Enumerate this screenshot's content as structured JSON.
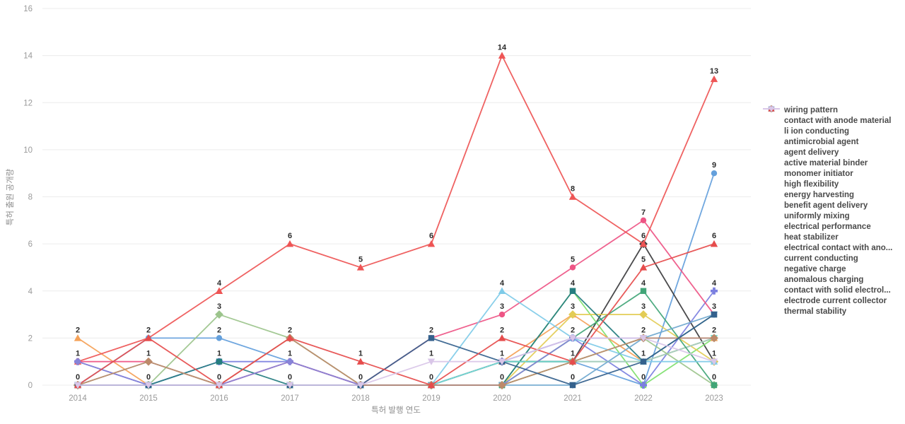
{
  "chart_data": {
    "type": "line",
    "title": "",
    "xlabel": "특허 발행 연도",
    "ylabel": "특허 출원 공개량",
    "x": [
      2014,
      2015,
      2016,
      2017,
      2018,
      2019,
      2020,
      2021,
      2022,
      2023
    ],
    "ylim": [
      0,
      16
    ],
    "ytick_step": 2,
    "grid": true,
    "legend_position": "right",
    "point_labels": "unique value per year shown above point clusters",
    "series": [
      {
        "name": "wiring pattern",
        "color": "#64A0DC",
        "shape": "circle",
        "values": [
          0,
          2,
          2,
          1,
          0,
          0,
          1,
          1,
          0,
          9
        ]
      },
      {
        "name": "contact with anode material",
        "color": "#3b3b3d",
        "shape": "diamond",
        "values": [
          0,
          0,
          0,
          0,
          0,
          0,
          1,
          1,
          6,
          1
        ]
      },
      {
        "name": "li ion conducting",
        "color": "#7EE06E",
        "shape": "square",
        "values": [
          0,
          0,
          0,
          0,
          0,
          0,
          0,
          4,
          0,
          2
        ]
      },
      {
        "name": "antimicrobial agent",
        "color": "#F5A157",
        "shape": "tri-up",
        "values": [
          2,
          0,
          0,
          0,
          0,
          0,
          1,
          3,
          1,
          2
        ]
      },
      {
        "name": "agent delivery",
        "color": "#7B7FE0",
        "shape": "cross",
        "values": [
          1,
          0,
          1,
          1,
          0,
          0,
          1,
          2,
          0,
          4
        ]
      },
      {
        "name": "active material binder",
        "color": "#EE5585",
        "shape": "circle",
        "values": [
          1,
          1,
          0,
          1,
          0,
          2,
          3,
          5,
          7,
          3
        ]
      },
      {
        "name": "monomer initiator",
        "color": "#E3CC55",
        "shape": "diamond",
        "values": [
          0,
          0,
          0,
          0,
          0,
          0,
          0,
          3,
          3,
          1
        ]
      },
      {
        "name": "high flexibility",
        "color": "#257D80",
        "shape": "square",
        "values": [
          0,
          0,
          1,
          0,
          0,
          0,
          0,
          4,
          1,
          3
        ]
      },
      {
        "name": "energy harvesting",
        "color": "#EE5555",
        "shape": "tri-up",
        "values": [
          1,
          2,
          4,
          6,
          5,
          6,
          14,
          8,
          6,
          13
        ]
      },
      {
        "name": "benefit agent delivery",
        "color": "#70E0D0",
        "shape": "tri-down",
        "values": [
          0,
          0,
          0,
          0,
          0,
          0,
          1,
          1,
          1,
          2
        ]
      },
      {
        "name": "uniformly mixing",
        "color": "#AECCBC",
        "shape": "circle",
        "values": [
          0,
          1,
          0,
          0,
          0,
          0,
          0,
          1,
          1,
          2
        ]
      },
      {
        "name": "electrical performance",
        "color": "#9CC48C",
        "shape": "diamond",
        "values": [
          0,
          0,
          3,
          2,
          0,
          0,
          0,
          1,
          2,
          0
        ]
      },
      {
        "name": "heat stabilizer",
        "color": "#41A577",
        "shape": "square",
        "values": [
          0,
          0,
          0,
          0,
          0,
          0,
          0,
          2,
          4,
          0
        ]
      },
      {
        "name": "electrical contact with ano...",
        "color": "#7FCBE8",
        "shape": "tri-up",
        "values": [
          0,
          0,
          0,
          0,
          0,
          0,
          4,
          2,
          1,
          1
        ]
      },
      {
        "name": "current conducting",
        "color": "#6FA8CF",
        "shape": "tri-down",
        "values": [
          0,
          0,
          0,
          0,
          0,
          0,
          0,
          0,
          2,
          3
        ]
      },
      {
        "name": "negative charge",
        "color": "#8784D8",
        "shape": "circle",
        "values": [
          1,
          0,
          0,
          1,
          0,
          0,
          0,
          2,
          2,
          2
        ]
      },
      {
        "name": "anomalous charging",
        "color": "#BC8A6A",
        "shape": "diamond",
        "values": [
          0,
          1,
          0,
          2,
          0,
          0,
          0,
          1,
          2,
          2
        ]
      },
      {
        "name": "contact with solid electrol...",
        "color": "#34618D",
        "shape": "square",
        "values": [
          0,
          0,
          0,
          0,
          0,
          2,
          1,
          0,
          1,
          3
        ]
      },
      {
        "name": "electrode current collector",
        "color": "#E64C4C",
        "shape": "tri-up",
        "values": [
          0,
          2,
          0,
          2,
          1,
          0,
          2,
          1,
          5,
          6
        ]
      },
      {
        "name": "thermal stability",
        "color": "#D9C6E8",
        "shape": "tri-down",
        "values": [
          0,
          0,
          0,
          0,
          0,
          1,
          1,
          2,
          2,
          1
        ]
      }
    ]
  },
  "axes": {
    "x_title": "특허 발행 연도",
    "y_title": "특허 출원 공개량",
    "x_ticks": [
      "2014",
      "2015",
      "2016",
      "2017",
      "2018",
      "2019",
      "2020",
      "2021",
      "2022",
      "2023"
    ],
    "y_ticks": [
      "0",
      "2",
      "4",
      "6",
      "8",
      "10",
      "12",
      "14",
      "16"
    ]
  },
  "colors": {
    "background": "#ffffff",
    "gridline": "#ececec",
    "tick_text": "#9a9a9a",
    "axis_title_text": "#8d8d8d",
    "point_label_text": "#2b2b2b",
    "legend_text": "#4a4a4a"
  }
}
